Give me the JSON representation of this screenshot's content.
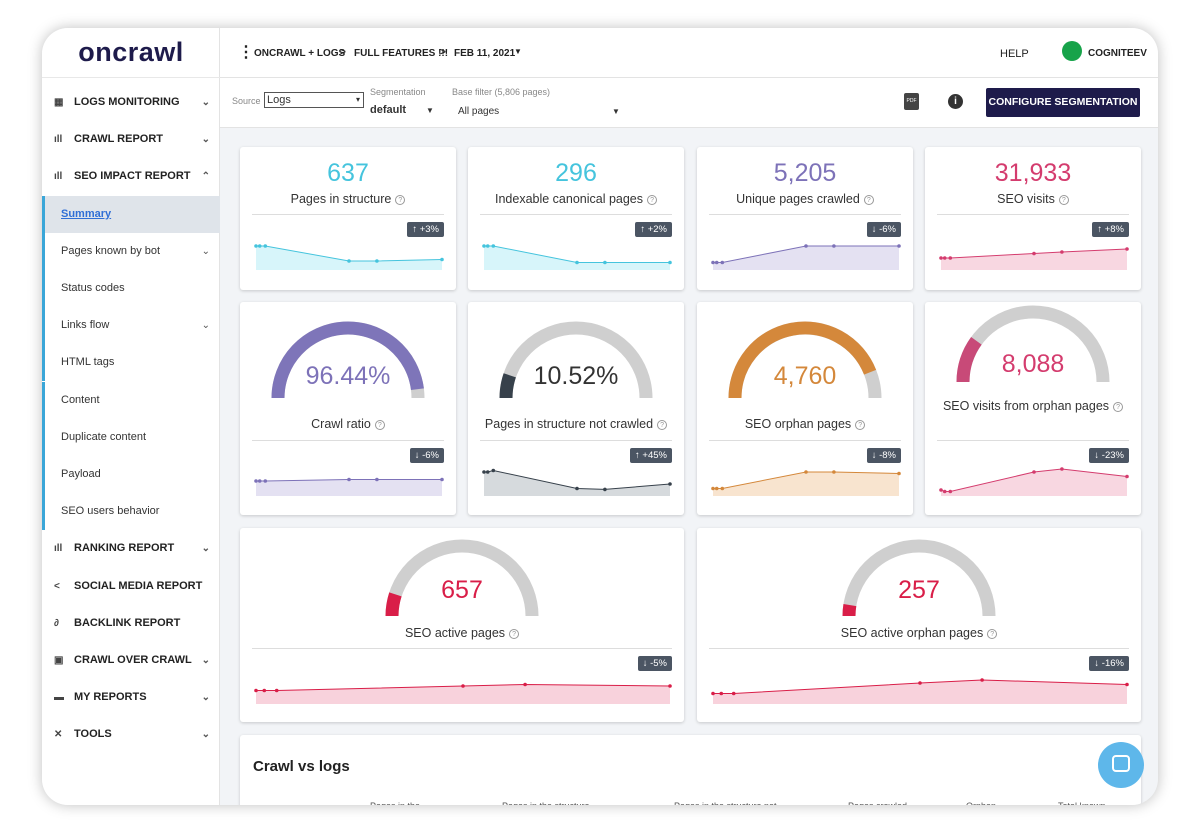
{
  "sidebar": {
    "logo": "oncrawl",
    "items": [
      {
        "label": "LOGS MONITORING"
      },
      {
        "label": "CRAWL REPORT"
      },
      {
        "label": "SEO IMPACT REPORT"
      },
      {
        "label": "Summary"
      },
      {
        "label": "Pages known by bot"
      },
      {
        "label": "Status codes"
      },
      {
        "label": "Links flow"
      },
      {
        "label": "HTML tags"
      },
      {
        "label": "Content"
      },
      {
        "label": "Duplicate content"
      },
      {
        "label": "Payload"
      },
      {
        "label": "SEO users behavior"
      },
      {
        "label": "RANKING REPORT"
      },
      {
        "label": "SOCIAL MEDIA REPORT"
      },
      {
        "label": "BACKLINK REPORT"
      },
      {
        "label": "CRAWL OVER CRAWL"
      },
      {
        "label": "MY REPORTS"
      },
      {
        "label": "TOOLS"
      }
    ]
  },
  "topbar": {
    "breadcrumb": [
      "ONCRAWL + LOGS",
      "FULL FEATURES !!!",
      "FEB 11, 2021"
    ],
    "help": "HELP",
    "user": "COGNITEEV"
  },
  "filters": {
    "source_label": "Source",
    "source": "Logs",
    "segmentation_label": "Segmentation",
    "segmentation": "default",
    "base_filter_label": "Base filter (5,806 pages)",
    "base_filter": "All pages",
    "pdf": "PDF",
    "button": "CONFIGURE SEGMENTATION"
  },
  "cards": [
    {
      "value": "637",
      "label": "Pages in structure",
      "change": "↑ +3%"
    },
    {
      "value": "296",
      "label": "Indexable canonical pages",
      "change": "↑ +2%"
    },
    {
      "value": "5,205",
      "label": "Unique pages crawled",
      "change": "↓ -6%"
    },
    {
      "value": "31,933",
      "label": "SEO visits",
      "change": "↑ +8%"
    },
    {
      "value": "96.44%",
      "label": "Crawl ratio",
      "change": "↓ -6%"
    },
    {
      "value": "10.52%",
      "label": "Pages in structure not crawled",
      "change": "↑ +45%"
    },
    {
      "value": "4,760",
      "label": "SEO orphan pages",
      "change": "↓ -8%"
    },
    {
      "value": "8,088",
      "label": "SEO visits from orphan pages",
      "change": "↓ -23%"
    },
    {
      "value": "657",
      "label": "SEO active pages",
      "change": "↓ -5%"
    },
    {
      "value": "257",
      "label": "SEO active orphan pages",
      "change": "↓ -16%"
    }
  ],
  "section": {
    "title": "Crawl vs logs",
    "columns": [
      "Pages in the",
      "Pages in the structure",
      "Pages in the structure not",
      "Pages crawled",
      "Orphan",
      "Total known"
    ]
  }
}
